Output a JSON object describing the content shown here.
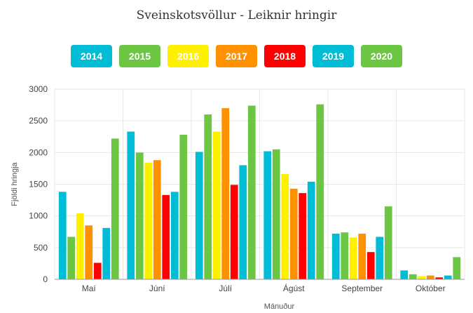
{
  "chart_data": {
    "type": "bar",
    "title": "Sveinskotsvöllur - Leiknir hringir",
    "xlabel": "Mánuður",
    "ylabel": "Fjöldi hringja",
    "ylim": [
      0,
      3000
    ],
    "yticks": [
      0,
      500,
      1000,
      1500,
      2000,
      2500,
      3000
    ],
    "grid": true,
    "legend_position": "top",
    "categories": [
      "Maí",
      "Júní",
      "Júlí",
      "Ágúst",
      "September",
      "Október"
    ],
    "series": [
      {
        "name": "2014",
        "color": "#00BCD4",
        "values": [
          1380,
          2330,
          2010,
          2020,
          720,
          140
        ]
      },
      {
        "name": "2015",
        "color": "#6CC644",
        "values": [
          670,
          2000,
          2600,
          2050,
          740,
          80
        ]
      },
      {
        "name": "2016",
        "color": "#FFF000",
        "values": [
          1040,
          1840,
          2330,
          1660,
          660,
          50
        ]
      },
      {
        "name": "2017",
        "color": "#FF9100",
        "values": [
          850,
          1880,
          2700,
          1430,
          720,
          60
        ]
      },
      {
        "name": "2018",
        "color": "#FF0000",
        "values": [
          260,
          1330,
          1490,
          1360,
          430,
          30
        ]
      },
      {
        "name": "2019",
        "color": "#00BCD4",
        "values": [
          810,
          1380,
          1800,
          1540,
          670,
          60
        ]
      },
      {
        "name": "2020",
        "color": "#6CC644",
        "values": [
          2220,
          2280,
          2740,
          2760,
          1150,
          350
        ]
      }
    ]
  }
}
